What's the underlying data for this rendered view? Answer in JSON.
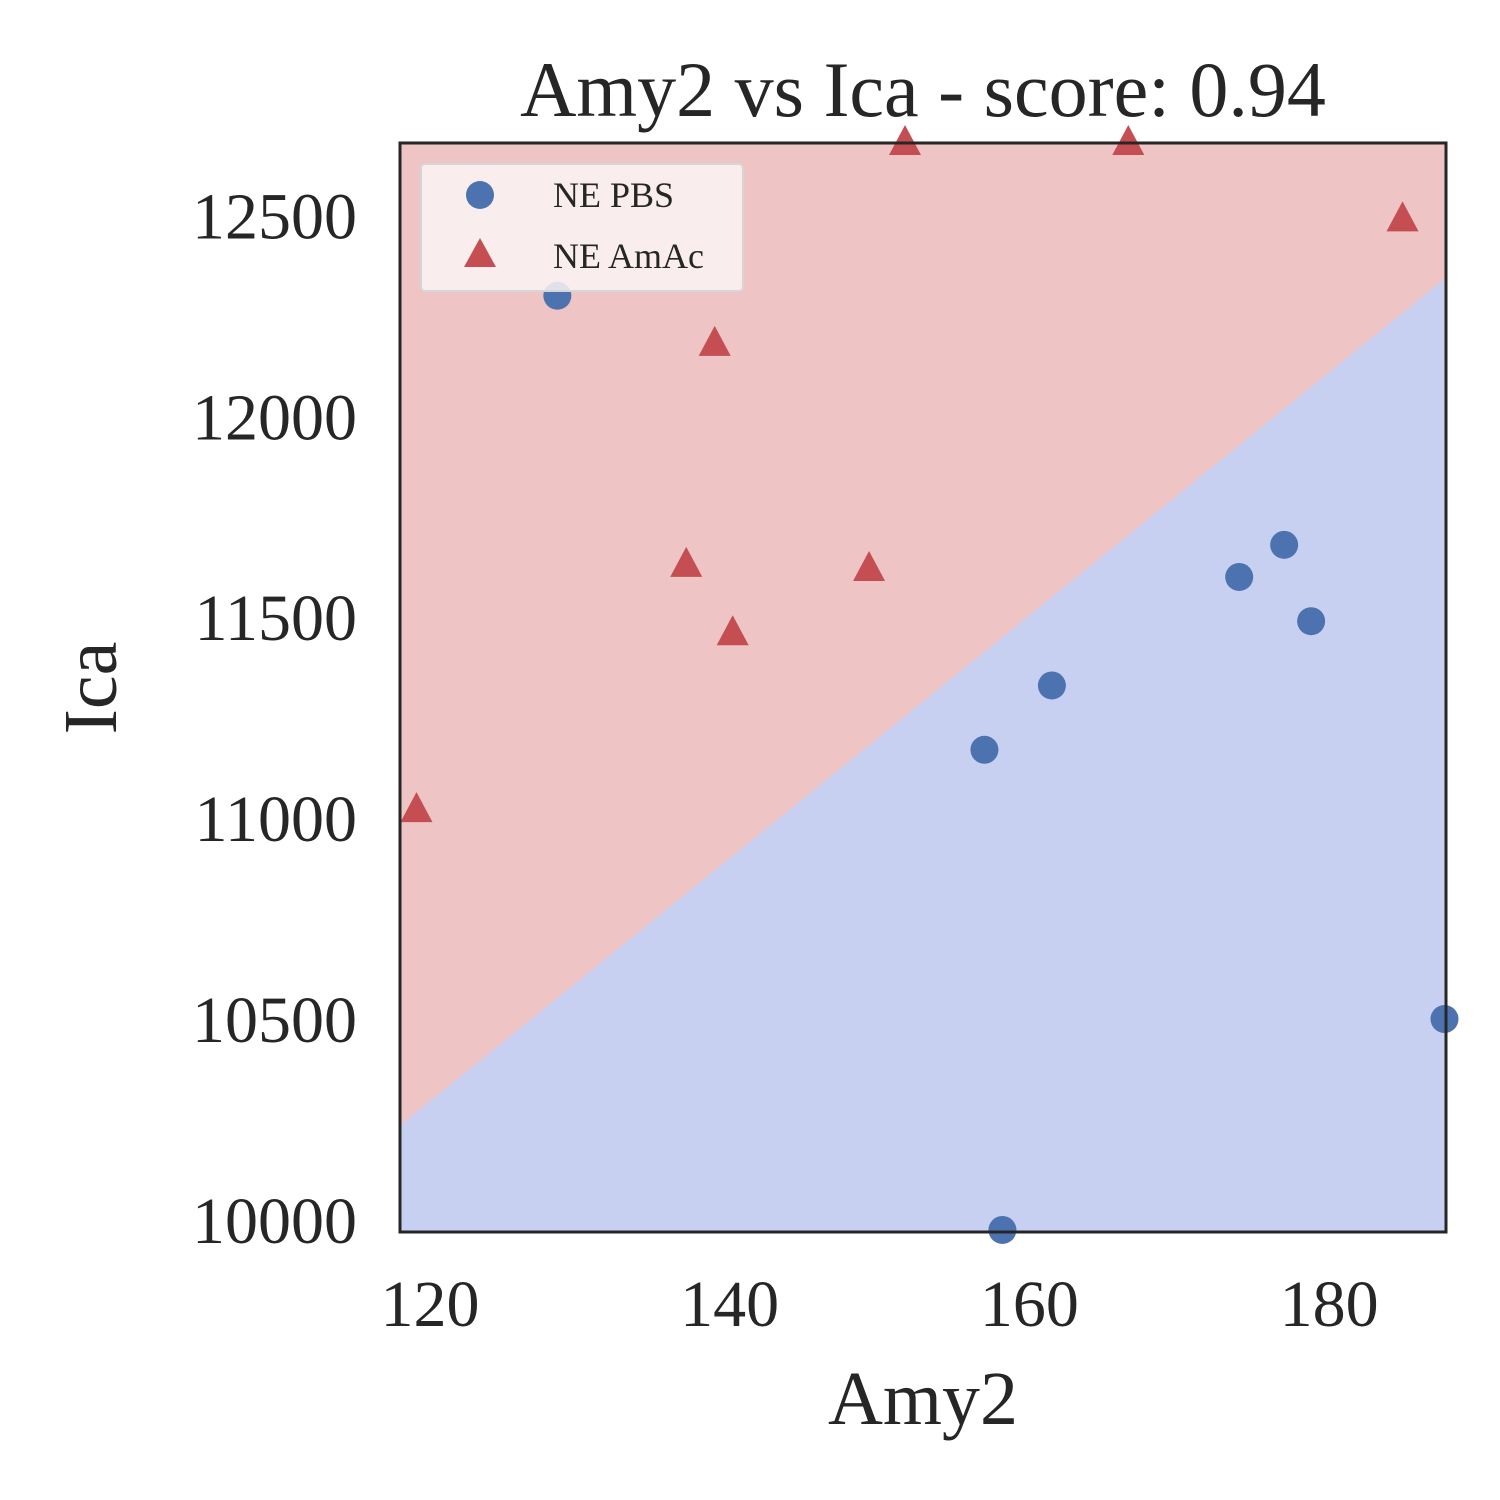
{
  "chart_data": {
    "type": "scatter",
    "title": "Amy2 vs Ica - score: 0.94",
    "xlabel": "Amy2",
    "ylabel": "Ica",
    "xlim": [
      118.0,
      187.8
    ],
    "ylim": [
      9970,
      12680
    ],
    "xticks": [
      120,
      140,
      160,
      180
    ],
    "yticks": [
      10000,
      10500,
      11000,
      11500,
      12000,
      12500
    ],
    "grid": false,
    "legend_position": "top-left",
    "decision_boundary": {
      "points": [
        [
          118.0,
          10235
        ],
        [
          187.8,
          12345
        ]
      ],
      "above_region_color": "#eec4c4",
      "below_region_color": "#c8d0f2",
      "above_class": "NE AmAc",
      "below_class": "NE PBS"
    },
    "series": [
      {
        "name": "NE PBS",
        "marker": "circle",
        "color": "#4c72b0",
        "x": [
          128.5,
          157.0,
          158.2,
          161.5,
          174.0,
          177.0,
          178.8,
          187.7
        ],
        "y": [
          12300,
          11170,
          9975,
          11330,
          11600,
          11680,
          11490,
          10500
        ]
      },
      {
        "name": "NE AmAc",
        "marker": "triangle",
        "color": "#c44e52",
        "x": [
          119.1,
          137.1,
          139.0,
          140.2,
          149.3,
          151.7,
          166.6,
          184.9
        ],
        "y": [
          11020,
          11630,
          12180,
          11460,
          11620,
          12680,
          12680,
          12490
        ]
      }
    ]
  }
}
